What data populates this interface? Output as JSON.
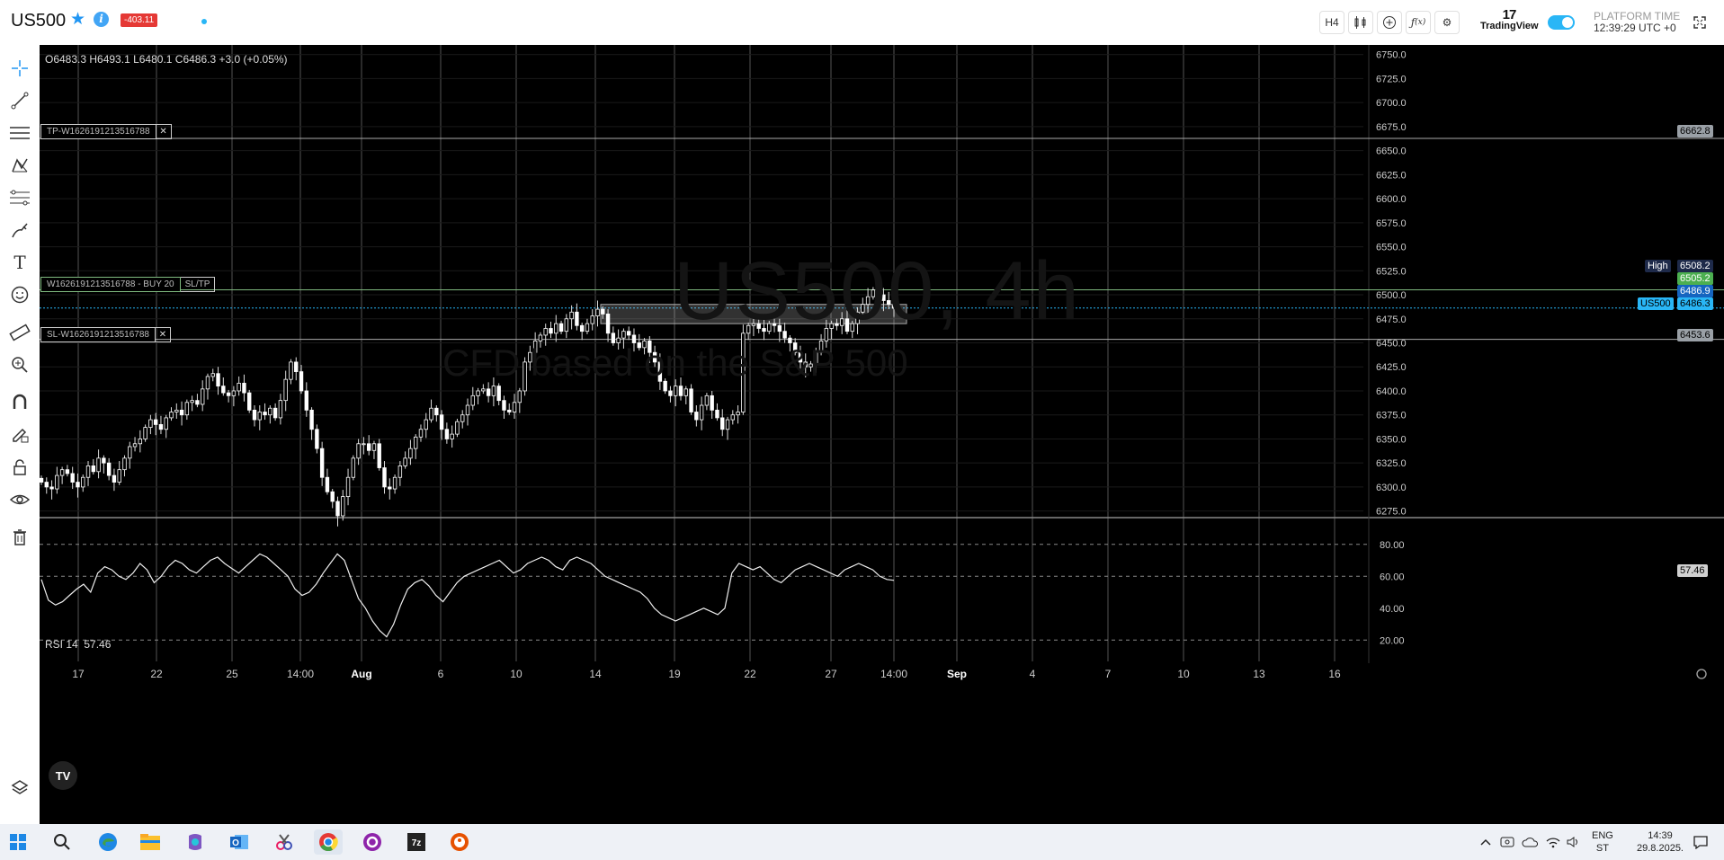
{
  "header": {
    "symbol": "US500",
    "pnl_badge": "-403.11",
    "timeframe": "H4",
    "brand_name": "TradingView",
    "platform_time_label": "PLATFORM TIME",
    "platform_time": "12:39:29 UTC +0",
    "icons": [
      "star-icon",
      "info-icon",
      "candles-icon",
      "plus-circle-icon",
      "fx-icon",
      "gear-icon",
      "fullscreen-icon"
    ],
    "colors": {
      "accent": "#29b6f6",
      "pnl_negative": "#e53935"
    }
  },
  "left_toolbar": {
    "tools": [
      "crosshair-icon",
      "trendline-icon",
      "horizontal-lines-icon",
      "pattern-icon",
      "fib-icon",
      "brush-icon",
      "text-icon",
      "emoji-icon",
      "ruler-icon",
      "zoom-icon",
      "magnet-icon",
      "draw-lock-icon",
      "lock-icon",
      "eye-icon",
      "trash-icon"
    ],
    "bottom": "layers-icon"
  },
  "chart": {
    "ohlc": "O6483.3 H6493.1 L6480.1 C6486.3 +3.0 (+0.05%)",
    "watermark_symbol": "US500, 4h",
    "watermark_desc": "CFD based on the S&P 500",
    "tp_label": "TP-W1626191213516788",
    "sl_label": "SL-W1626191213516788",
    "position_label": "W1626191213516788 - BUY 20",
    "sltp_button": "SL/TP",
    "close_glyph": "✕",
    "price_axis": [
      "6750.0",
      "6725.0",
      "6700.0",
      "6675.0",
      "6650.0",
      "6625.0",
      "6600.0",
      "6575.0",
      "6550.0",
      "6525.0",
      "6500.0",
      "6475.0",
      "6450.0",
      "6425.0",
      "6400.0",
      "6375.0",
      "6350.0",
      "6325.0",
      "6300.0",
      "6275.0"
    ],
    "price_tags": {
      "tp": "6662.8",
      "high_label": "High",
      "high": "6508.2",
      "entry": "6505.2",
      "ask": "6486.9",
      "symbol_tag": "US500",
      "last": "6486.3",
      "sl": "6453.6"
    },
    "time_axis": [
      "17",
      "22",
      "25",
      "14:00",
      "Aug",
      "6",
      "10",
      "14",
      "19",
      "22",
      "27",
      "14:00",
      "Sep",
      "4",
      "7",
      "10",
      "13",
      "16"
    ],
    "rsi": {
      "label": "RSI 14",
      "value": "57.46",
      "axis": [
        "80.00",
        "60.00",
        "40.00",
        "20.00"
      ]
    },
    "badge": "TV"
  },
  "chart_data": {
    "type": "candlestick",
    "title": "",
    "ylim": [
      6270,
      6760
    ],
    "x_labels": [
      "17",
      "22",
      "25",
      "14:00",
      "Aug",
      "6",
      "10",
      "14",
      "19",
      "22",
      "27",
      "14:00",
      "Sep",
      "4",
      "7",
      "10",
      "13",
      "16"
    ],
    "closes": [
      6305,
      6300,
      6298,
      6312,
      6318,
      6314,
      6305,
      6300,
      6310,
      6322,
      6316,
      6330,
      6325,
      6312,
      6305,
      6318,
      6330,
      6342,
      6345,
      6350,
      6362,
      6370,
      6365,
      6360,
      6372,
      6378,
      6380,
      6375,
      6388,
      6390,
      6386,
      6402,
      6415,
      6418,
      6405,
      6398,
      6395,
      6400,
      6408,
      6398,
      6380,
      6370,
      6378,
      6375,
      6382,
      6372,
      6390,
      6412,
      6430,
      6420,
      6400,
      6380,
      6360,
      6340,
      6310,
      6295,
      6285,
      6270,
      6290,
      6310,
      6330,
      6345,
      6345,
      6338,
      6345,
      6320,
      6300,
      6298,
      6310,
      6322,
      6330,
      6340,
      6352,
      6360,
      6370,
      6382,
      6375,
      6360,
      6350,
      6355,
      6368,
      6375,
      6385,
      6395,
      6400,
      6402,
      6395,
      6405,
      6390,
      6380,
      6378,
      6388,
      6400,
      6430,
      6440,
      6452,
      6458,
      6465,
      6460,
      6470,
      6462,
      6475,
      6482,
      6468,
      6462,
      6470,
      6478,
      6485,
      6480,
      6460,
      6450,
      6455,
      6462,
      6458,
      6450,
      6445,
      6452,
      6440,
      6430,
      6410,
      6400,
      6395,
      6405,
      6395,
      6402,
      6378,
      6370,
      6385,
      6395,
      6380,
      6372,
      6360,
      6370,
      6375,
      6378,
      6460,
      6468,
      6470,
      6465,
      6462,
      6470,
      6468,
      6462,
      6455,
      6450,
      6440,
      6430,
      6425,
      6428,
      6440,
      6452,
      6465,
      6470,
      6468,
      6475,
      6462,
      6470,
      6482,
      6490,
      6498,
      6505,
      6500,
      6494,
      6490,
      6486
    ],
    "rsi_values": [
      58,
      45,
      42,
      44,
      48,
      52,
      55,
      50,
      62,
      66,
      64,
      60,
      58,
      62,
      68,
      64,
      56,
      60,
      66,
      70,
      68,
      64,
      62,
      66,
      70,
      72,
      68,
      65,
      62,
      66,
      70,
      74,
      72,
      68,
      64,
      60,
      52,
      48,
      50,
      55,
      62,
      68,
      74,
      70,
      58,
      46,
      40,
      32,
      26,
      22,
      30,
      42,
      52,
      56,
      58,
      54,
      48,
      44,
      50,
      56,
      60,
      62,
      64,
      66,
      68,
      70,
      66,
      62,
      64,
      68,
      70,
      72,
      70,
      66,
      64,
      70,
      72,
      70,
      68,
      64,
      60,
      58,
      56,
      54,
      52,
      50,
      46,
      40,
      36,
      34,
      32,
      34,
      36,
      38,
      40,
      38,
      36,
      40,
      62,
      68,
      66,
      64,
      66,
      62,
      58,
      56,
      60,
      64,
      66,
      68,
      66,
      64,
      62,
      60,
      64,
      66,
      68,
      66,
      64,
      60,
      58,
      57.46
    ],
    "levels": {
      "tp": 6662.8,
      "entry": 6505.2,
      "sl": 6453.6,
      "high": 6508.2,
      "last": 6486.3
    }
  },
  "taskbar": {
    "apps": [
      "windows-start-icon",
      "search-icon",
      "edge-icon",
      "file-explorer-icon",
      "copilot-icon",
      "outlook-icon",
      "snipping-tool-icon",
      "chrome-icon",
      "app-icon",
      "7zip-icon",
      "duckduckgo-icon"
    ],
    "lang_top": "ENG",
    "lang_bottom": "ST",
    "time": "14:39",
    "date": "29.8.2025."
  }
}
